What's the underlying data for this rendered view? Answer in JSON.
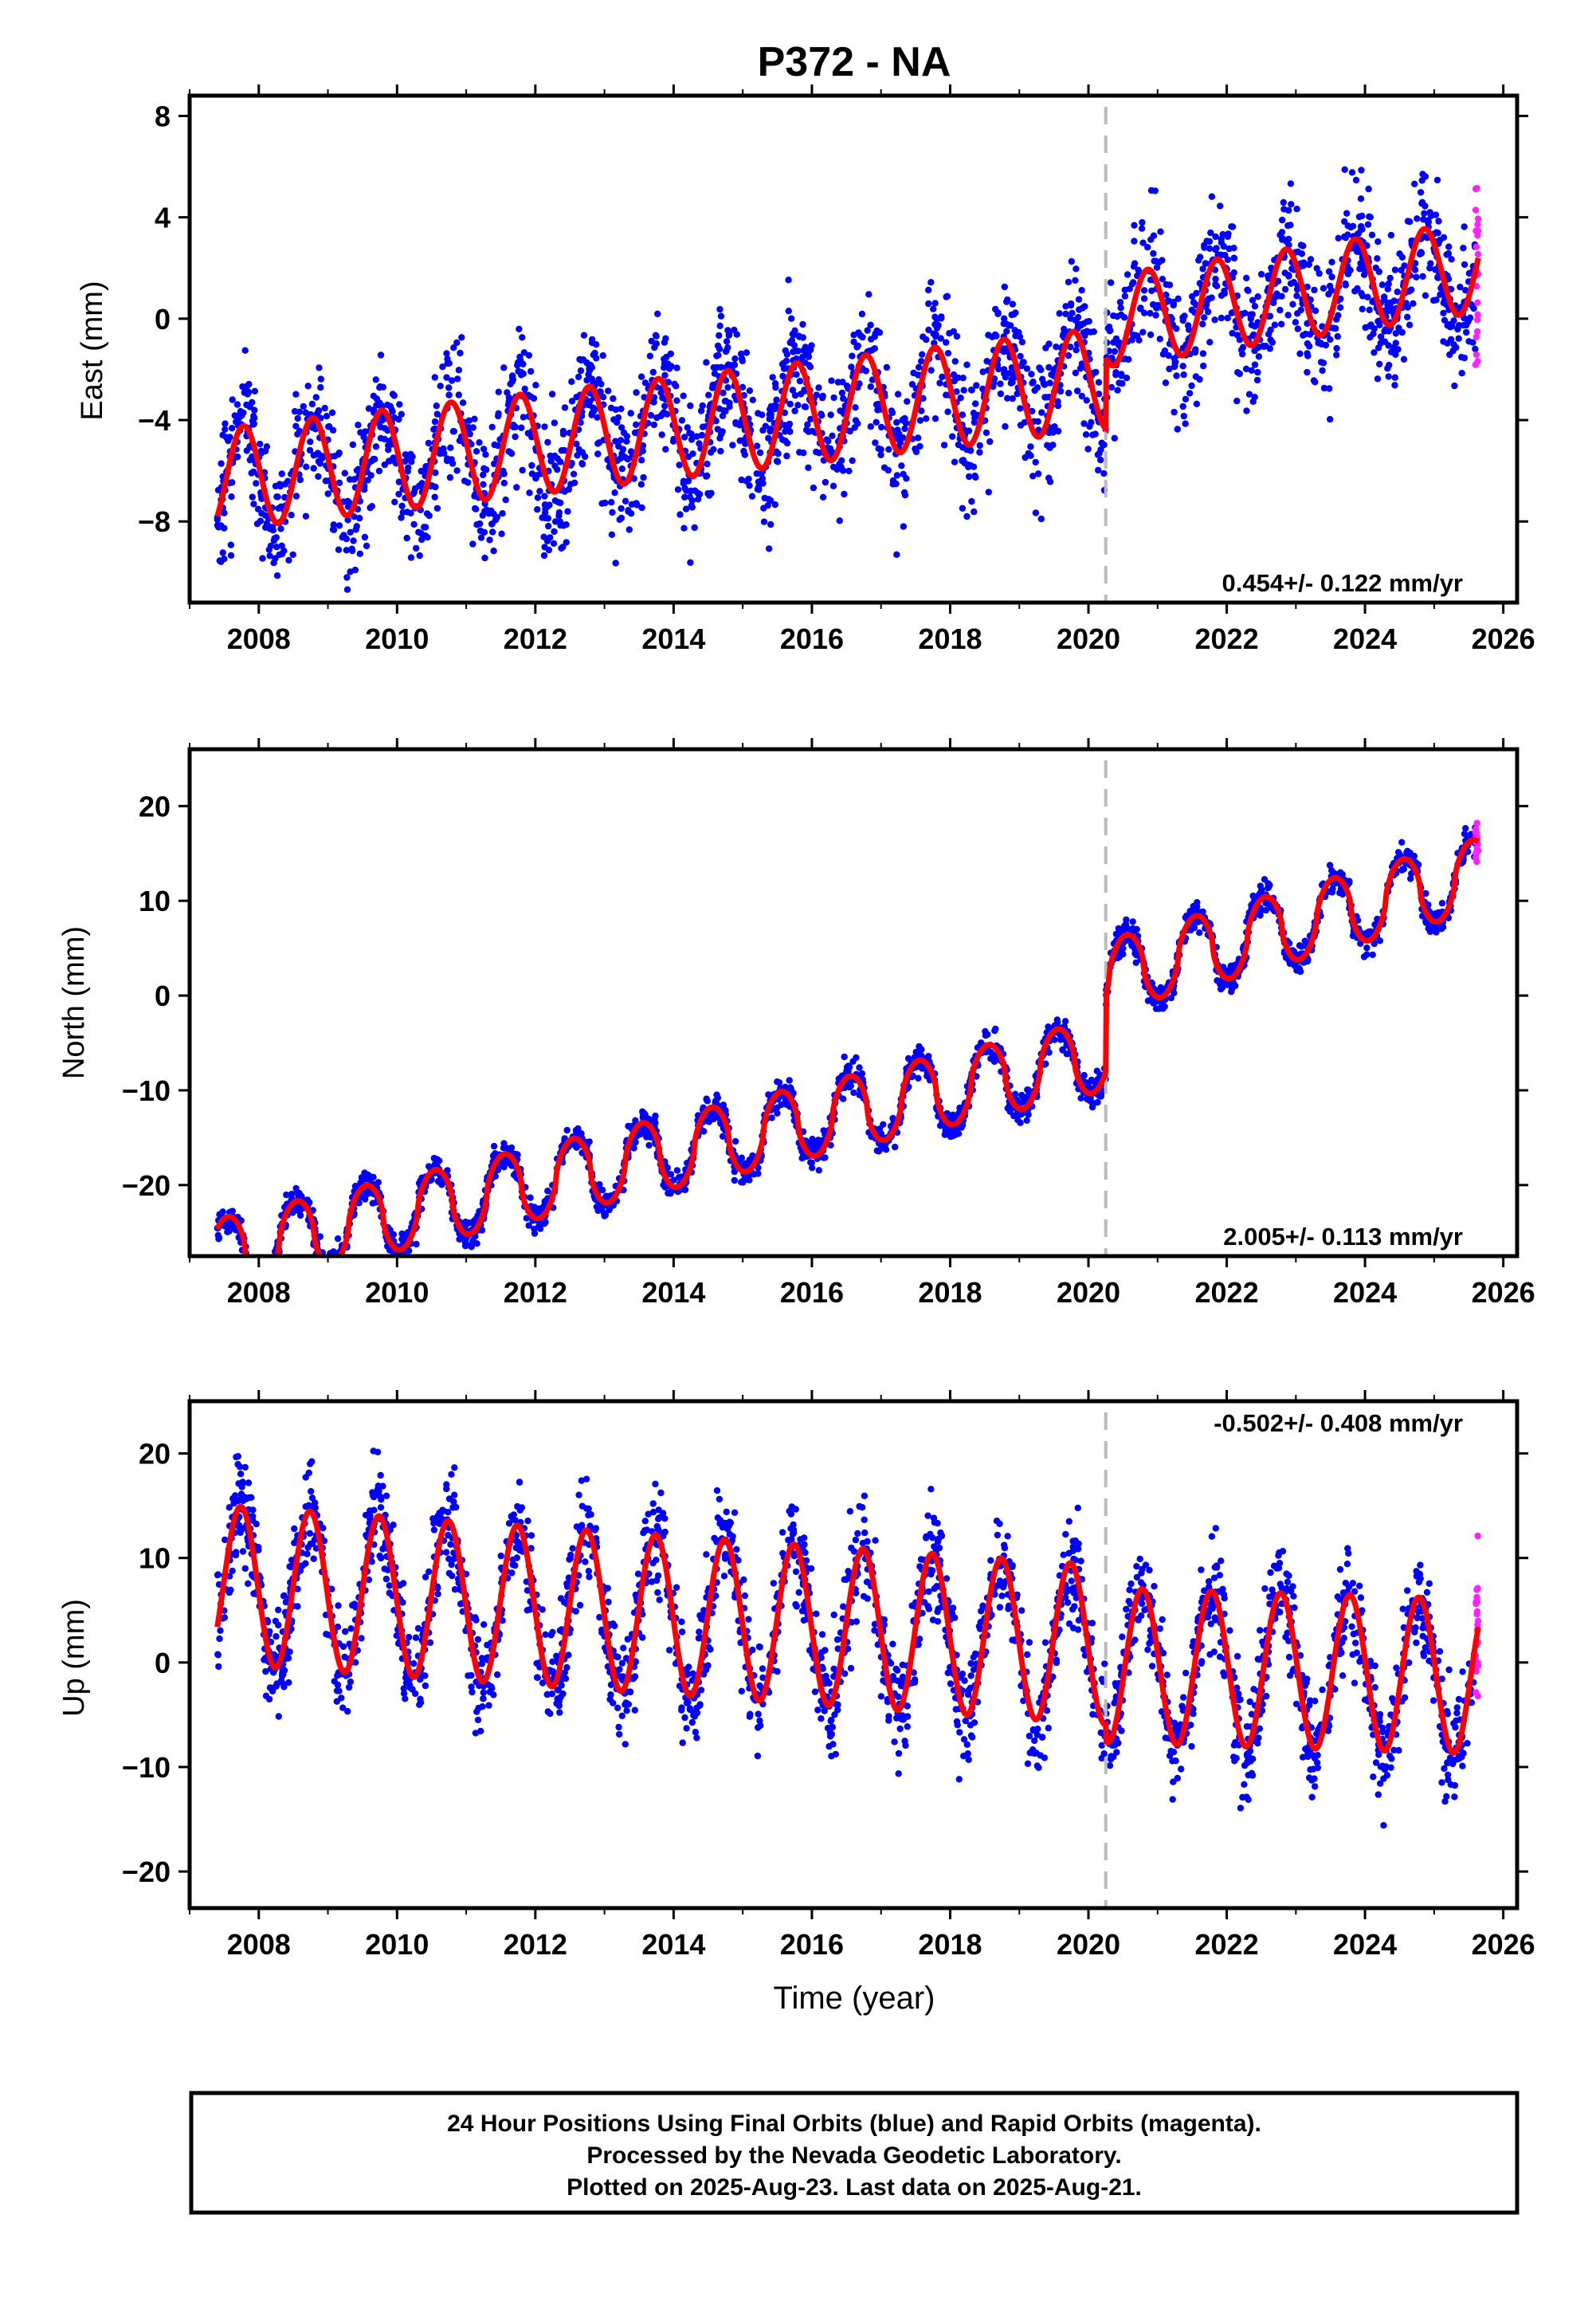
{
  "title": "P372 - NA",
  "colors": {
    "final": "#0000ff",
    "rapid": "#ff22ff",
    "model": "#ff0000",
    "break": "#bbbbbb",
    "frame": "#000000"
  },
  "xlabel": "Time (year)",
  "footer": {
    "line1": "24 Hour Positions Using Final Orbits (blue) and Rapid Orbits (magenta).",
    "line2": "Processed by the Nevada Geodetic Laboratory.",
    "line3": "Plotted on 2025-Aug-23. Last data on 2025-Aug-21."
  },
  "chart_data": [
    {
      "type": "scatter",
      "ylabel": "East (mm)",
      "rate_label": "0.454+/- 0.122 mm/yr",
      "rate_position": "bottom-right",
      "xlim": [
        2007.0,
        2026.2
      ],
      "ylim": [
        -11.2,
        8.8
      ],
      "xticks": [
        2008,
        2010,
        2012,
        2014,
        2016,
        2018,
        2020,
        2022,
        2024,
        2026
      ],
      "xticklabels": [
        "2008",
        "2010",
        "2012",
        "2014",
        "2016",
        "2018",
        "2020",
        "2022",
        "2024",
        "2026"
      ],
      "yticks": [
        -8,
        -4,
        0,
        4,
        8
      ],
      "yticklabels": [
        "−8",
        "−4",
        "0",
        "4",
        "8"
      ],
      "series": [
        {
          "role": "final orbits (blue)",
          "x_range": [
            2007.4,
            2025.6
          ],
          "scatter_mm": 1.9
        },
        {
          "role": "rapid orbits (magenta)",
          "x_range": [
            2025.6,
            2025.64
          ]
        },
        {
          "role": "model fit (red)",
          "pre_break": {
            "offset": -4.3,
            "slope": 0.31,
            "annual_amp": 2.0,
            "peak_phase": 0.78
          },
          "post_break": {
            "offset": 1.0,
            "slope": 0.4,
            "annual_amp": 1.8,
            "peak_phase": 0.86
          }
        }
      ],
      "break_epoch": 2020.25
    },
    {
      "type": "scatter",
      "ylabel": "North (mm)",
      "rate_label": "2.005+/- 0.113 mm/yr",
      "rate_position": "bottom-right",
      "xlim": [
        2007.0,
        2026.2
      ],
      "ylim": [
        -27.5,
        26.0
      ],
      "xticks": [
        2008,
        2010,
        2012,
        2014,
        2016,
        2018,
        2020,
        2022,
        2024,
        2026
      ],
      "xticklabels": [
        "2008",
        "2010",
        "2012",
        "2014",
        "2016",
        "2018",
        "2020",
        "2022",
        "2024",
        "2026"
      ],
      "yticks": [
        -20,
        -10,
        0,
        10,
        20
      ],
      "yticklabels": [
        "−20",
        "−10",
        "0",
        "10",
        "20"
      ],
      "series": [
        {
          "role": "final orbits (blue)",
          "x_range": [
            2007.4,
            2025.6
          ],
          "scatter_mm": 1.1
        },
        {
          "role": "rapid orbits (magenta)",
          "x_range": [
            2025.6,
            2025.64
          ]
        },
        {
          "role": "model fit (red)",
          "pre_break": {
            "offset": -16.5,
            "slope": 1.65,
            "annual_amp": 3.8,
            "peak_phase": 0.55,
            "shape": "cusp"
          },
          "post_break": {
            "offset": 7.5,
            "slope": 2.0,
            "annual_amp": 3.8,
            "peak_phase": 0.55,
            "shape": "cusp"
          }
        }
      ],
      "break_epoch": 2020.25
    },
    {
      "type": "scatter",
      "ylabel": "Up (mm)",
      "rate_label": "-0.502+/- 0.408 mm/yr",
      "rate_position": "top-right",
      "xlim": [
        2007.0,
        2026.2
      ],
      "ylim": [
        -23.5,
        25.0
      ],
      "xticks": [
        2008,
        2010,
        2012,
        2014,
        2016,
        2018,
        2020,
        2022,
        2024,
        2026
      ],
      "xticklabels": [
        "2008",
        "2010",
        "2012",
        "2014",
        "2016",
        "2018",
        "2020",
        "2022",
        "2024",
        "2026"
      ],
      "yticks": [
        -20,
        -10,
        0,
        10,
        20
      ],
      "yticklabels": [
        "−20",
        "−10",
        "0",
        "10",
        "20"
      ],
      "series": [
        {
          "role": "final orbits (blue)",
          "x_range": [
            2007.4,
            2025.6
          ],
          "scatter_mm": 3.6
        },
        {
          "role": "rapid orbits (magenta)",
          "x_range": [
            2025.6,
            2025.64
          ]
        },
        {
          "role": "model fit (red)",
          "pre_break": {
            "offset": 4.5,
            "slope": -0.45,
            "annual_amp": 7.6,
            "peak_phase": 0.74
          },
          "post_break": {
            "offset": -0.8,
            "slope": -0.2,
            "annual_amp": 7.4,
            "peak_phase": 0.78
          }
        }
      ],
      "break_epoch": 2020.25
    }
  ]
}
